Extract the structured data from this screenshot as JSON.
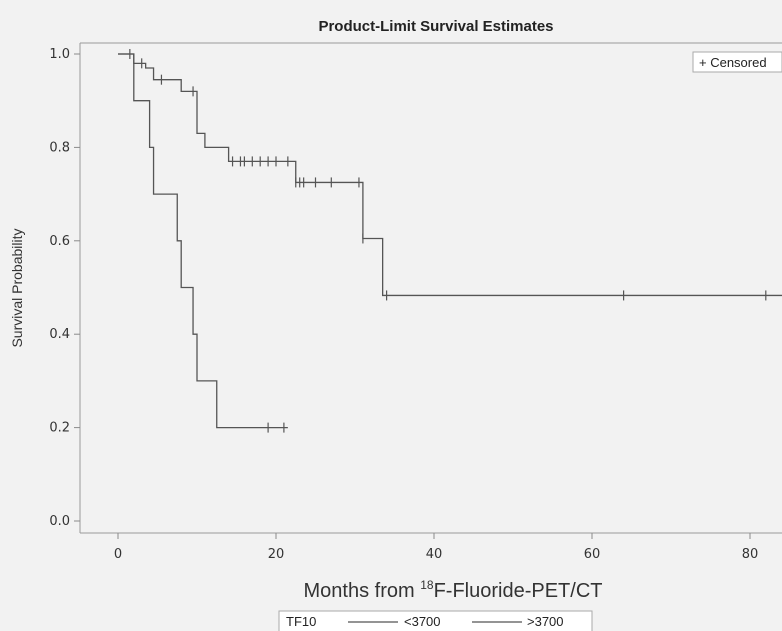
{
  "chart_data": {
    "type": "line",
    "subtype": "step (Kaplan-Meier)",
    "title": "Product-Limit Survival Estimates",
    "xlabel_prefix": "Months from ",
    "xlabel_superscript": "18",
    "xlabel_suffix": "F-Fluoride-PET/CT",
    "ylabel": "Survival Probability",
    "xlim": [
      -5,
      85
    ],
    "ylim": [
      0,
      1.0
    ],
    "xticks": [
      0,
      20,
      40,
      60,
      80
    ],
    "yticks": [
      0.0,
      0.2,
      0.4,
      0.6,
      0.8,
      1.0
    ],
    "ytick_labels": [
      "0.0",
      "0.2",
      "0.4",
      "0.6",
      "0.8",
      "1.0"
    ],
    "grid": false,
    "censored_legend": "+ Censored",
    "censored_legend_position": "top-right",
    "group_legend_title": "TF10",
    "series": [
      {
        "name": "<3700",
        "color": "#555555",
        "steps": [
          [
            0,
            1.0
          ],
          [
            2,
            0.9
          ],
          [
            4,
            0.8
          ],
          [
            4.5,
            0.7
          ],
          [
            7.5,
            0.6
          ],
          [
            8,
            0.5
          ],
          [
            9.5,
            0.4
          ],
          [
            10,
            0.3
          ],
          [
            12.5,
            0.2
          ],
          [
            21.5,
            0.2
          ]
        ],
        "censored_x": [
          19,
          21
        ]
      },
      {
        "name": ">3700",
        "color": "#555555",
        "steps": [
          [
            0,
            1.0
          ],
          [
            2,
            0.98
          ],
          [
            3.5,
            0.97
          ],
          [
            4.5,
            0.945
          ],
          [
            8,
            0.92
          ],
          [
            10,
            0.83
          ],
          [
            11,
            0.8
          ],
          [
            14,
            0.77
          ],
          [
            22.5,
            0.725
          ],
          [
            31,
            0.605
          ],
          [
            33.5,
            0.483
          ],
          [
            85,
            0.483
          ]
        ],
        "censored_x": [
          1.5,
          3,
          5.5,
          9.5,
          14.5,
          15.5,
          16,
          17,
          18,
          19,
          20,
          21.5,
          22.5,
          23,
          23.5,
          25,
          27,
          30.5,
          31,
          34,
          64,
          82
        ]
      }
    ]
  }
}
